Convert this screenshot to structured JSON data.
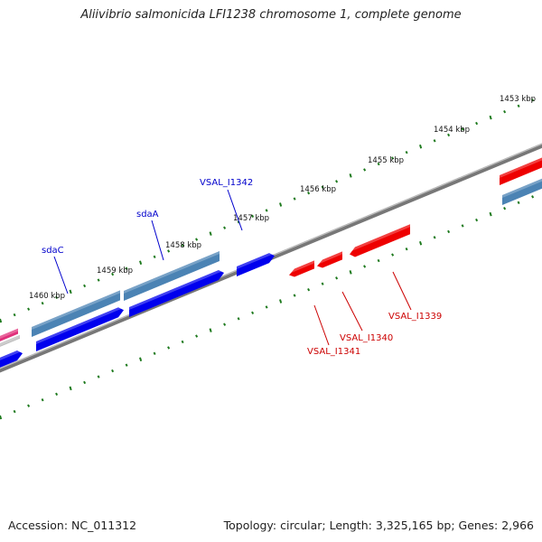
{
  "title": "Aliivibrio salmonicida LFI1238 chromosome 1, complete genome",
  "footer": {
    "accession": "Accession: NC_011312",
    "summary": "Topology: circular; Length: 3,325,165 bp; Genes: 2,966"
  },
  "colors": {
    "backbone": "#8a8a8a",
    "tick": "#1e7a1e",
    "forward_cds": "#0000ee",
    "forward_gene": "#4b83b4",
    "reverse_cds": "#ee0000",
    "forward_label": "#0000cc",
    "reverse_label": "#cc0000",
    "edge_pink": "#e0307a"
  },
  "ruler_labels": [
    "1453 kbp",
    "1454 kbp",
    "1455 kbp",
    "1456 kbp",
    "1457 kbp",
    "1458 kbp",
    "1459 kbp",
    "1460 kbp"
  ],
  "forward_features": [
    {
      "label": "sdaC"
    },
    {
      "label": "sdaA"
    },
    {
      "label": "VSAL_I1342"
    }
  ],
  "reverse_features": [
    {
      "label": "VSAL_I1341"
    },
    {
      "label": "VSAL_I1340"
    },
    {
      "label": "VSAL_I1339"
    }
  ]
}
